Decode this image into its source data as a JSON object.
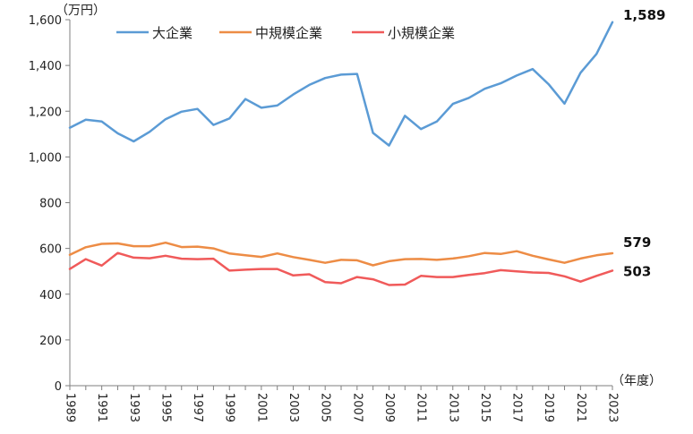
{
  "chart_data": {
    "type": "line",
    "y_unit_label": "（万円）",
    "x_unit_label": "（年度）",
    "ylim": [
      0,
      1600
    ],
    "y_ticks": [
      0,
      200,
      400,
      600,
      800,
      1000,
      1200,
      1400,
      1600
    ],
    "y_tick_labels": [
      "0",
      "200",
      "400",
      "600",
      "800",
      "1,000",
      "1,200",
      "1,400",
      "1,600"
    ],
    "grid": false,
    "legend_position": "top-left",
    "x": [
      1989,
      1990,
      1991,
      1992,
      1993,
      1994,
      1995,
      1996,
      1997,
      1998,
      1999,
      2000,
      2001,
      2002,
      2003,
      2004,
      2005,
      2006,
      2007,
      2008,
      2009,
      2010,
      2011,
      2012,
      2013,
      2014,
      2015,
      2016,
      2017,
      2018,
      2019,
      2020,
      2021,
      2022,
      2023
    ],
    "x_tick_labels": [
      "1989",
      "1991",
      "1993",
      "1995",
      "1997",
      "1999",
      "2001",
      "2003",
      "2005",
      "2007",
      "2009",
      "2011",
      "2013",
      "2015",
      "2017",
      "2019",
      "2021",
      "2023"
    ],
    "series": [
      {
        "name": "大企業",
        "color": "#5b9bd5",
        "values": [
          1128,
          1163,
          1155,
          1103,
          1068,
          1110,
          1165,
          1198,
          1210,
          1140,
          1168,
          1253,
          1215,
          1225,
          1273,
          1315,
          1345,
          1360,
          1363,
          1105,
          1050,
          1180,
          1122,
          1155,
          1232,
          1258,
          1298,
          1322,
          1356,
          1384,
          1318,
          1233,
          1368,
          1450,
          1589
        ],
        "end_label": "1,589"
      },
      {
        "name": "中規模企業",
        "color": "#ed8c45",
        "values": [
          572,
          605,
          620,
          622,
          610,
          610,
          625,
          606,
          608,
          600,
          578,
          570,
          563,
          578,
          562,
          550,
          537,
          550,
          548,
          526,
          544,
          553,
          554,
          550,
          556,
          566,
          580,
          576,
          588,
          568,
          552,
          537,
          556,
          570,
          579
        ],
        "end_label": "579"
      },
      {
        "name": "小規模企業",
        "color": "#f05a5a",
        "values": [
          510,
          553,
          525,
          580,
          560,
          557,
          568,
          555,
          553,
          555,
          503,
          507,
          510,
          510,
          482,
          487,
          453,
          448,
          475,
          465,
          440,
          442,
          480,
          475,
          475,
          484,
          492,
          505,
          500,
          495,
          493,
          478,
          455,
          480,
          503
        ],
        "end_label": "503"
      }
    ]
  }
}
